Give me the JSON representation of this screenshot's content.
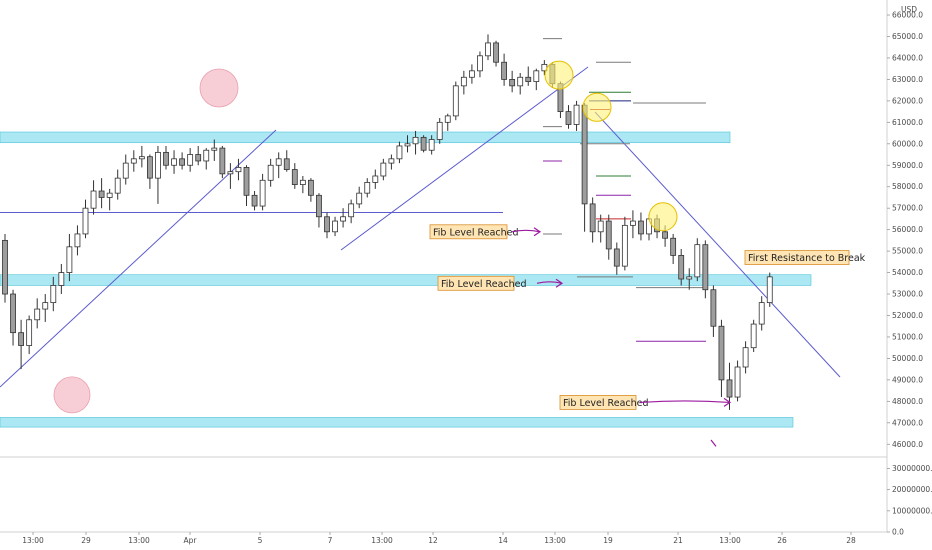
{
  "chart_data": {
    "type": "candlestick",
    "currency": "USD",
    "price_axis_ticks": [
      "66000.0",
      "65000.0",
      "64000.0",
      "63000.0",
      "62000.0",
      "61000.0",
      "60000.0",
      "59000.0",
      "58000.0",
      "57000.0",
      "56000.0",
      "55000.0",
      "54000.0",
      "53000.0",
      "52000.0",
      "51000.0",
      "50000.0",
      "49000.0",
      "48000.0",
      "47000.0",
      "46000.0"
    ],
    "price_range": [
      45500,
      66700
    ],
    "volume_axis_ticks": [
      "30000000.0",
      "20000000.0",
      "10000000.0",
      "0.0"
    ],
    "volume_range": [
      0,
      34000000
    ],
    "x_ticks": [
      "13:00",
      "29",
      "13:00",
      "Apr",
      "5",
      "7",
      "13:00",
      "12",
      "14",
      "13:00",
      "19",
      "21",
      "13:00",
      "26",
      "28"
    ],
    "candles": [
      [
        55500,
        55800,
        52600,
        53000
      ],
      [
        53000,
        53200,
        50600,
        51200
      ],
      [
        51200,
        51800,
        49500,
        50600
      ],
      [
        50600,
        52000,
        50200,
        51800
      ],
      [
        51800,
        52800,
        51400,
        52300
      ],
      [
        52300,
        53000,
        51700,
        52600
      ],
      [
        52600,
        53800,
        52200,
        53400
      ],
      [
        53400,
        54400,
        53000,
        54000
      ],
      [
        54000,
        55800,
        53600,
        55200
      ],
      [
        55200,
        56200,
        54800,
        55800
      ],
      [
        55800,
        57400,
        55600,
        57000
      ],
      [
        57000,
        58300,
        56700,
        57800
      ],
      [
        57800,
        58400,
        57000,
        57500
      ],
      [
        57500,
        57900,
        56900,
        57700
      ],
      [
        57700,
        58800,
        57400,
        58400
      ],
      [
        58400,
        59500,
        58100,
        59100
      ],
      [
        59100,
        59700,
        58700,
        59300
      ],
      [
        59300,
        59900,
        58900,
        59400
      ],
      [
        59400,
        59500,
        57900,
        58400
      ],
      [
        58400,
        59900,
        57200,
        59600
      ],
      [
        59600,
        59900,
        58800,
        59000
      ],
      [
        59000,
        59700,
        58600,
        59300
      ],
      [
        59300,
        59600,
        58800,
        59000
      ],
      [
        59000,
        59800,
        58700,
        59500
      ],
      [
        59500,
        59900,
        59000,
        59200
      ],
      [
        59200,
        59800,
        58800,
        59700
      ],
      [
        59700,
        60200,
        59200,
        59800
      ],
      [
        59800,
        59900,
        58400,
        58600
      ],
      [
        58600,
        59100,
        57900,
        58700
      ],
      [
        58700,
        59300,
        58300,
        58900
      ],
      [
        58900,
        59000,
        57100,
        57600
      ],
      [
        57600,
        57800,
        56900,
        57100
      ],
      [
        57100,
        58600,
        56900,
        58300
      ],
      [
        58300,
        59300,
        58000,
        59000
      ],
      [
        59000,
        59600,
        58400,
        59300
      ],
      [
        59300,
        59700,
        58700,
        58800
      ],
      [
        58800,
        59100,
        57900,
        58100
      ],
      [
        58100,
        58500,
        57700,
        58300
      ],
      [
        58300,
        58400,
        57300,
        57600
      ],
      [
        57600,
        57700,
        56100,
        56600
      ],
      [
        56600,
        56800,
        55600,
        55900
      ],
      [
        55900,
        56600,
        55700,
        56400
      ],
      [
        56400,
        57000,
        56100,
        56600
      ],
      [
        56600,
        57400,
        56300,
        57200
      ],
      [
        57200,
        58000,
        57000,
        57700
      ],
      [
        57700,
        58400,
        57500,
        58200
      ],
      [
        58200,
        58800,
        57900,
        58500
      ],
      [
        58500,
        59300,
        58300,
        59100
      ],
      [
        59100,
        59500,
        58800,
        59300
      ],
      [
        59300,
        60100,
        59100,
        59900
      ],
      [
        59900,
        60400,
        59600,
        60000
      ],
      [
        60000,
        60600,
        59500,
        60300
      ],
      [
        60300,
        60400,
        59600,
        59700
      ],
      [
        59700,
        60400,
        59500,
        60200
      ],
      [
        60200,
        61200,
        60000,
        61000
      ],
      [
        61000,
        61400,
        60600,
        61300
      ],
      [
        61300,
        62900,
        61100,
        62700
      ],
      [
        62700,
        63400,
        62300,
        63100
      ],
      [
        63100,
        63700,
        62800,
        63400
      ],
      [
        63400,
        64300,
        63100,
        64100
      ],
      [
        64100,
        65100,
        63900,
        64700
      ],
      [
        64700,
        64800,
        63600,
        63800
      ],
      [
        63800,
        64200,
        62700,
        63000
      ],
      [
        63000,
        63400,
        62400,
        62700
      ],
      [
        62700,
        63300,
        62300,
        63100
      ],
      [
        63100,
        63600,
        62700,
        62900
      ],
      [
        62900,
        63500,
        62500,
        63400
      ],
      [
        63400,
        63900,
        63200,
        63700
      ],
      [
        63700,
        63800,
        62600,
        62800
      ],
      [
        62800,
        62900,
        61200,
        61500
      ],
      [
        61500,
        61800,
        60700,
        60900
      ],
      [
        60900,
        62000,
        60600,
        61800
      ],
      [
        61800,
        61900,
        55900,
        57200
      ],
      [
        57200,
        57500,
        55400,
        55900
      ],
      [
        55900,
        56700,
        55400,
        56400
      ],
      [
        56400,
        56700,
        54600,
        55100
      ],
      [
        55100,
        55400,
        53900,
        54300
      ],
      [
        54300,
        56600,
        54100,
        56200
      ],
      [
        56200,
        56900,
        55600,
        56400
      ],
      [
        56400,
        56800,
        55500,
        55800
      ],
      [
        55800,
        56700,
        55500,
        56500
      ],
      [
        56500,
        56700,
        55600,
        55900
      ],
      [
        55900,
        56200,
        55200,
        55600
      ],
      [
        55600,
        55800,
        54400,
        54800
      ],
      [
        54800,
        55100,
        53400,
        53700
      ],
      [
        53700,
        54200,
        53200,
        53800
      ],
      [
        53800,
        55600,
        53600,
        55300
      ],
      [
        55300,
        55500,
        52800,
        53200
      ],
      [
        53200,
        53400,
        51000,
        51500
      ],
      [
        51500,
        51800,
        48200,
        49000
      ],
      [
        49000,
        49800,
        47600,
        48200
      ],
      [
        48200,
        49900,
        48000,
        49600
      ],
      [
        49600,
        50800,
        49300,
        50500
      ],
      [
        50500,
        51800,
        50300,
        51600
      ],
      [
        51600,
        52900,
        51300,
        52600
      ],
      [
        52600,
        54000,
        52400,
        53800
      ]
    ],
    "horizontal_zones": [
      {
        "low": 60050,
        "high": 60550,
        "color": "#8fe0ef"
      },
      {
        "low": 53400,
        "high": 53900,
        "color": "#8fe0ef"
      },
      {
        "low": 46800,
        "high": 47250,
        "color": "#8fe0ef"
      }
    ],
    "support_line_price": 56800,
    "fib_segments": [
      {
        "price": 64900,
        "color": "#7a7a7a"
      },
      {
        "price": 63800,
        "color": "#7a7a7a"
      },
      {
        "price": 62400,
        "color": "#2e7d32"
      },
      {
        "price": 62000,
        "color": "#1a237e"
      },
      {
        "price": 61900,
        "color": "#7a7a7a"
      },
      {
        "price": 61600,
        "color": "#c62828"
      },
      {
        "price": 60800,
        "color": "#7a7a7a"
      },
      {
        "price": 60000,
        "color": "#7a7a7a"
      },
      {
        "price": 59200,
        "color": "#8e24aa"
      },
      {
        "price": 58500,
        "color": "#2e7d32"
      },
      {
        "price": 57600,
        "color": "#8e24aa"
      },
      {
        "price": 56500,
        "color": "#c62828"
      },
      {
        "price": 55800,
        "color": "#7a7a7a"
      },
      {
        "price": 53800,
        "color": "#7a7a7a"
      },
      {
        "price": 53300,
        "color": "#7a7a7a"
      },
      {
        "price": 50800,
        "color": "#8e24aa"
      }
    ],
    "annotations": [
      {
        "text": "Fib Level Reached",
        "price": 55900
      },
      {
        "text": "Fib Level Reached",
        "price": 53500
      },
      {
        "text": "Fib Level Reached",
        "price": 47950
      },
      {
        "text": "First Resistance to Break",
        "price": 54700
      }
    ],
    "colors": {
      "candle_body": "#ffffff",
      "candle_wick": "#333333",
      "trendline": "#5c5ccf",
      "circle_pink": "#f7c6cf",
      "circle_yellow": "#fff176",
      "callout_bg": "#ffe5b4",
      "callout_border": "#d98f2b",
      "arrow": "#9c1aa0"
    }
  }
}
